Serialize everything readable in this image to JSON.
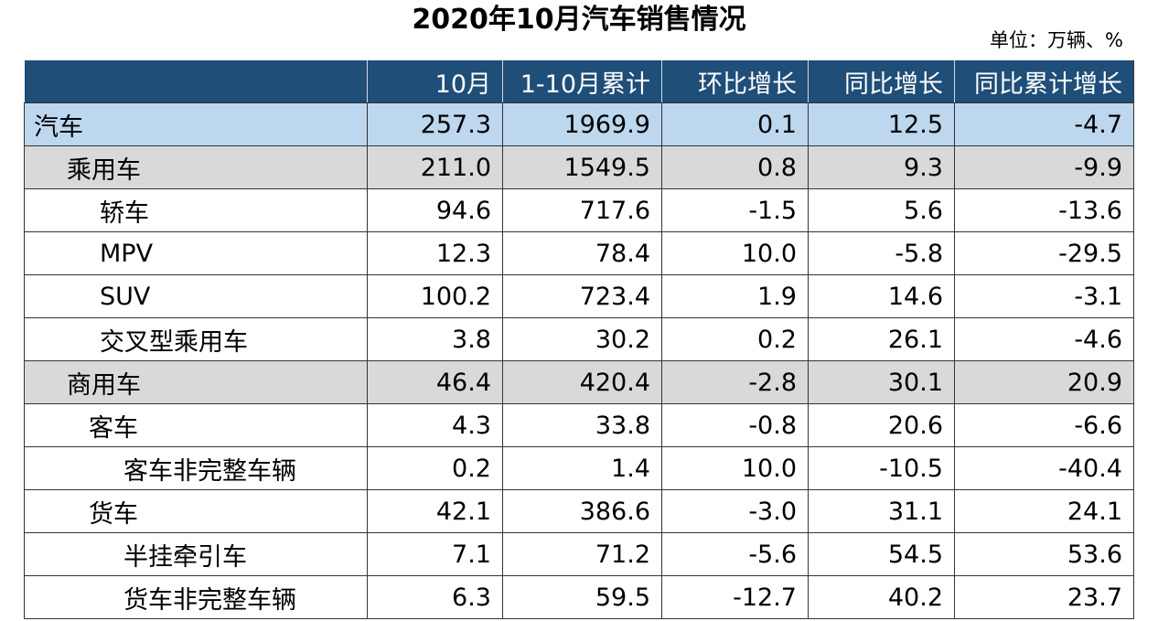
{
  "title": "2020年10月汽车销售情况",
  "unit": "单位：万辆、%",
  "columns": [
    "",
    "10月",
    "1-10月累计",
    "环比增长",
    "同比增长",
    "同比累计增长"
  ],
  "rows": [
    {
      "name": "汽车",
      "level": 0,
      "indent": "ind0",
      "values": [
        "257.3",
        "1969.9",
        "0.1",
        "12.5",
        "-4.7"
      ]
    },
    {
      "name": "乘用车",
      "level": 1,
      "indent": "ind1",
      "values": [
        "211.0",
        "1549.5",
        "0.8",
        "9.3",
        "-9.9"
      ]
    },
    {
      "name": "轿车",
      "level": 2,
      "indent": "ind2",
      "values": [
        "94.6",
        "717.6",
        "-1.5",
        "5.6",
        "-13.6"
      ]
    },
    {
      "name": "MPV",
      "level": 2,
      "indent": "ind2",
      "values": [
        "12.3",
        "78.4",
        "10.0",
        "-5.8",
        "-29.5"
      ]
    },
    {
      "name": "SUV",
      "level": 2,
      "indent": "ind2",
      "values": [
        "100.2",
        "723.4",
        "1.9",
        "14.6",
        "-3.1"
      ]
    },
    {
      "name": "交叉型乘用车",
      "level": 2,
      "indent": "ind2",
      "values": [
        "3.8",
        "30.2",
        "0.2",
        "26.1",
        "-4.6"
      ]
    },
    {
      "name": "商用车",
      "level": 1,
      "indent": "ind1",
      "values": [
        "46.4",
        "420.4",
        "-2.8",
        "30.1",
        "20.9"
      ]
    },
    {
      "name": "客车",
      "level": 2,
      "indent": "ind1b",
      "values": [
        "4.3",
        "33.8",
        "-0.8",
        "20.6",
        "-6.6"
      ]
    },
    {
      "name": "客车非完整车辆",
      "level": 3,
      "indent": "ind2b",
      "values": [
        "0.2",
        "1.4",
        "10.0",
        "-10.5",
        "-40.4"
      ]
    },
    {
      "name": "货车",
      "level": 2,
      "indent": "ind1b",
      "values": [
        "42.1",
        "386.6",
        "-3.0",
        "31.1",
        "24.1"
      ]
    },
    {
      "name": "半挂牵引车",
      "level": 3,
      "indent": "ind2b",
      "values": [
        "7.1",
        "71.2",
        "-5.6",
        "54.5",
        "53.6"
      ]
    },
    {
      "name": "货车非完整车辆",
      "level": 3,
      "indent": "ind2b",
      "values": [
        "6.3",
        "59.5",
        "-12.7",
        "40.2",
        "23.7"
      ]
    }
  ]
}
